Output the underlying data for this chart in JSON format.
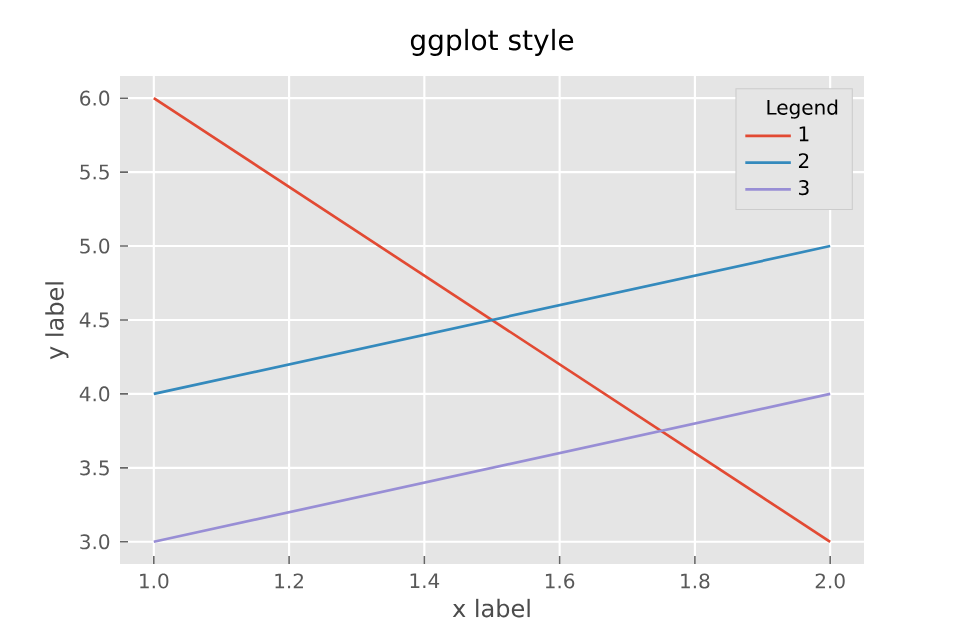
{
  "chart_data": {
    "type": "line",
    "title": "ggplot style",
    "xlabel": "x label",
    "ylabel": "y label",
    "legend_title": "Legend",
    "x": [
      1,
      2
    ],
    "series": [
      {
        "name": "1",
        "color": "#e24a33",
        "values": [
          6,
          3
        ]
      },
      {
        "name": "2",
        "color": "#348abd",
        "values": [
          4,
          5
        ]
      },
      {
        "name": "3",
        "color": "#988ed5",
        "values": [
          3,
          4
        ]
      }
    ],
    "xlim": [
      0.95,
      2.05
    ],
    "ylim": [
      2.85,
      6.15
    ],
    "xticks": [
      {
        "value": 1,
        "label": "1.0"
      },
      {
        "value": 1.2,
        "label": "1.2"
      },
      {
        "value": 1.4,
        "label": "1.4"
      },
      {
        "value": 1.6,
        "label": "1.6"
      },
      {
        "value": 1.8,
        "label": "1.8"
      },
      {
        "value": 2,
        "label": "2.0"
      }
    ],
    "yticks": [
      {
        "value": 3,
        "label": "3.0"
      },
      {
        "value": 3.5,
        "label": "3.5"
      },
      {
        "value": 4,
        "label": "4.0"
      },
      {
        "value": 4.5,
        "label": "4.5"
      },
      {
        "value": 5,
        "label": "5.0"
      },
      {
        "value": 5.5,
        "label": "5.5"
      },
      {
        "value": 6,
        "label": "6.0"
      }
    ],
    "grid": true,
    "legend": "top right",
    "line_style": "solid"
  }
}
